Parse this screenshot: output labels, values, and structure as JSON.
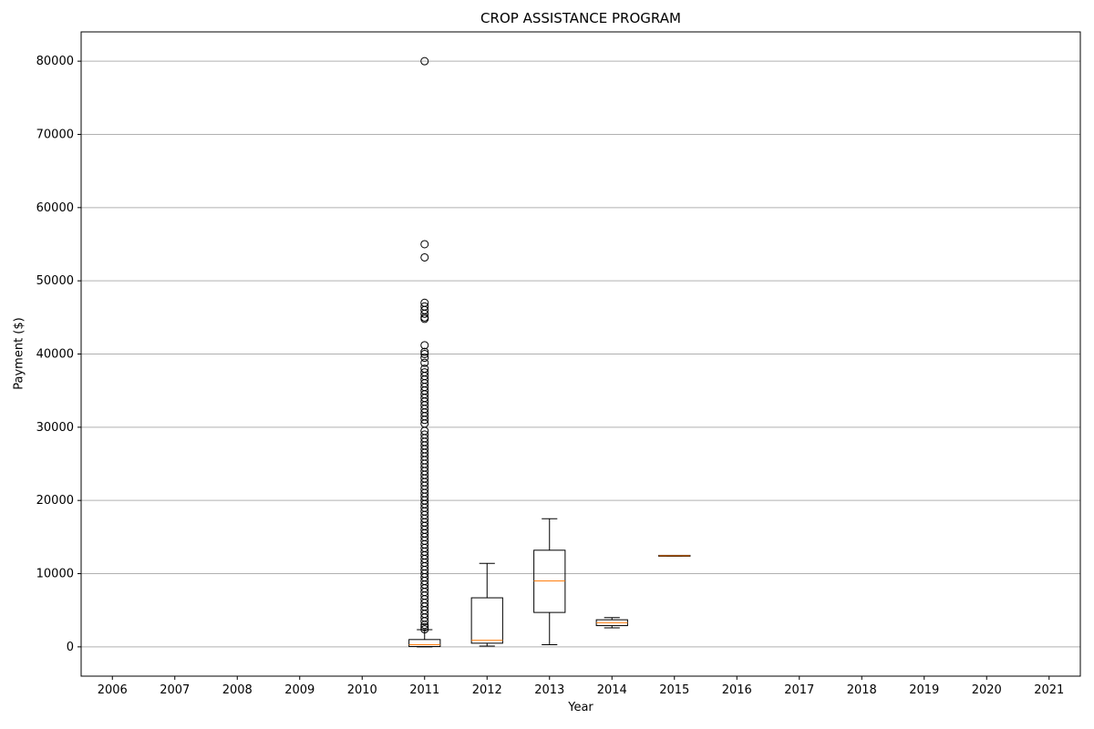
{
  "chart_data": {
    "type": "boxplot",
    "title": "CROP ASSISTANCE PROGRAM",
    "xlabel": "Year",
    "ylabel": "Payment ($)",
    "categories": [
      "2006",
      "2007",
      "2008",
      "2009",
      "2010",
      "2011",
      "2012",
      "2013",
      "2014",
      "2015",
      "2016",
      "2017",
      "2018",
      "2019",
      "2020",
      "2021"
    ],
    "ylim": [
      -4000,
      84000
    ],
    "yticks": [
      0,
      10000,
      20000,
      30000,
      40000,
      50000,
      60000,
      70000,
      80000
    ],
    "ytick_labels": [
      "0",
      "10000",
      "20000",
      "30000",
      "40000",
      "50000",
      "60000",
      "70000",
      "80000"
    ],
    "grid": "y",
    "box_color": "#000000",
    "median_color": "#ff7f0e",
    "boxes": [
      {
        "category": "2011",
        "whisker_low": 0,
        "q1": 50,
        "median": 300,
        "q3": 1000,
        "whisker_high": 2350,
        "fliers": [
          80000,
          55000,
          53200,
          47000,
          46500,
          46000,
          45500,
          45000,
          44800,
          41200,
          40300,
          40000,
          39500,
          38800,
          38000,
          37500,
          37000,
          36500,
          36000,
          35500,
          35000,
          34500,
          34000,
          33500,
          33000,
          32500,
          32000,
          31500,
          31000,
          30500,
          29500,
          29000,
          28500,
          28000,
          27500,
          27000,
          26500,
          26000,
          25500,
          25000,
          24500,
          24000,
          23500,
          23000,
          22500,
          22000,
          21500,
          21000,
          20500,
          20000,
          19500,
          19000,
          18500,
          18000,
          17500,
          17000,
          16500,
          16000,
          15500,
          15000,
          14500,
          14000,
          13500,
          13000,
          12500,
          12000,
          11500,
          11000,
          10500,
          10000,
          9500,
          9000,
          8500,
          8000,
          7500,
          7000,
          6500,
          6000,
          5500,
          5000,
          4500,
          4000,
          3500,
          3000,
          2700,
          2400
        ]
      },
      {
        "category": "2012",
        "whisker_low": 100,
        "q1": 500,
        "median": 900,
        "q3": 6700,
        "whisker_high": 11400,
        "fliers": []
      },
      {
        "category": "2013",
        "whisker_low": 300,
        "q1": 4700,
        "median": 9000,
        "q3": 13200,
        "whisker_high": 17500,
        "fliers": []
      },
      {
        "category": "2014",
        "whisker_low": 2600,
        "q1": 2900,
        "median": 3300,
        "q3": 3700,
        "whisker_high": 4000,
        "fliers": []
      },
      {
        "category": "2015",
        "whisker_low": 12400,
        "q1": 12400,
        "median": 12450,
        "q3": 12500,
        "whisker_high": 12500,
        "fliers": []
      }
    ]
  }
}
